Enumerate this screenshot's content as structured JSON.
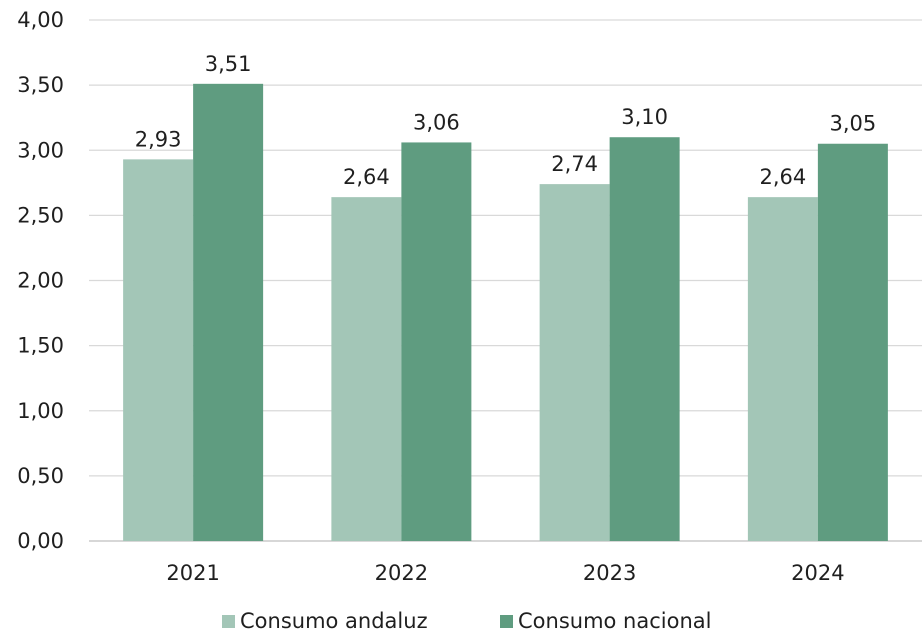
{
  "chart_data": {
    "type": "bar",
    "title": "",
    "xlabel": "",
    "ylabel": "",
    "categories": [
      "2021",
      "2022",
      "2023",
      "2024"
    ],
    "series": [
      {
        "name": "Consumo andaluz",
        "values": [
          2.93,
          2.64,
          2.74,
          2.64
        ],
        "labels": [
          "2,93",
          "2,64",
          "2,74",
          "2,64"
        ],
        "color": "#a3c6b7"
      },
      {
        "name": "Consumo nacional",
        "values": [
          3.51,
          3.06,
          3.1,
          3.05
        ],
        "labels": [
          "3,51",
          "3,06",
          "3,10",
          "3,05"
        ],
        "color": "#5f9c80"
      }
    ],
    "ylim": [
      0,
      4
    ],
    "yticks": [
      0,
      0.5,
      1,
      1.5,
      2,
      2.5,
      3,
      3.5,
      4
    ],
    "ytick_labels": [
      "0,00",
      "0,50",
      "1,00",
      "1,50",
      "2,00",
      "2,50",
      "3,00",
      "3,50",
      "4,00"
    ],
    "grid": true,
    "legend_position": "bottom"
  }
}
